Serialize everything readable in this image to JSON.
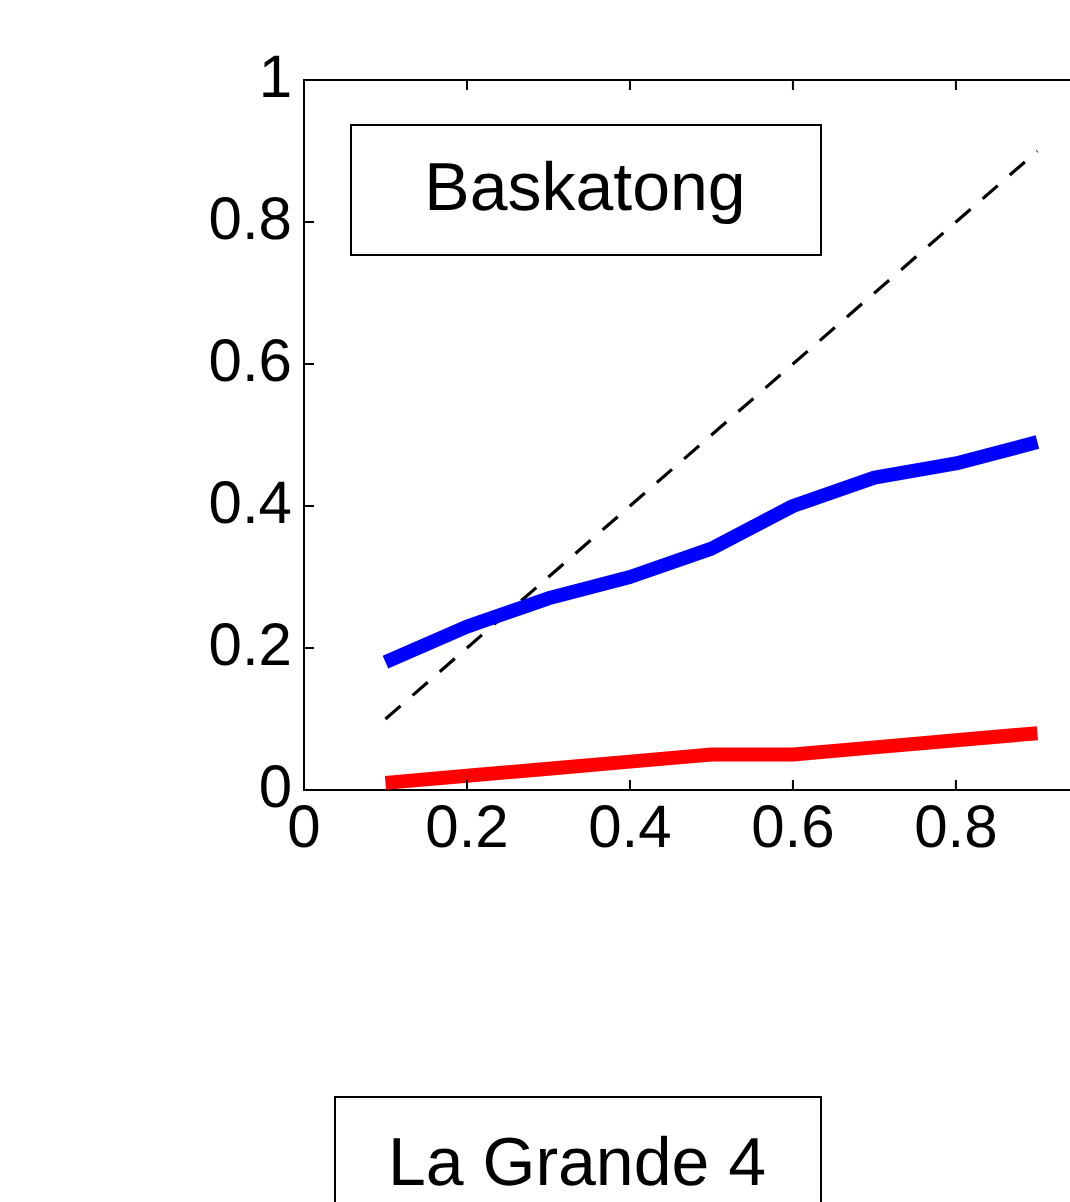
{
  "chart_data": {
    "type": "line",
    "x": [
      0.1,
      0.2,
      0.3,
      0.4,
      0.5,
      0.6,
      0.7,
      0.8,
      0.9
    ],
    "series": [
      {
        "color": "#0000ff",
        "values": [
          0.18,
          0.23,
          0.27,
          0.3,
          0.34,
          0.4,
          0.44,
          0.46,
          0.49
        ]
      },
      {
        "color": "#ff0000",
        "values": [
          0.01,
          0.02,
          0.03,
          0.04,
          0.05,
          0.05,
          0.06,
          0.07,
          0.08
        ]
      },
      {
        "color": "#000000",
        "line_style": "dashed",
        "values": [
          0.1,
          0.2,
          0.3,
          0.4,
          0.5,
          0.6,
          0.7,
          0.8,
          0.9
        ]
      }
    ],
    "xlim": [
      0,
      0.94
    ],
    "xticks": [
      0,
      0.2,
      0.4,
      0.6,
      0.8
    ],
    "ylim": [
      0,
      1
    ],
    "yticks": [
      0,
      0.2,
      0.4,
      0.6,
      0.8,
      1
    ],
    "grid": false,
    "legend": false,
    "marker": "none",
    "annotations": [
      "Baskatong",
      "La Grande 4"
    ]
  }
}
